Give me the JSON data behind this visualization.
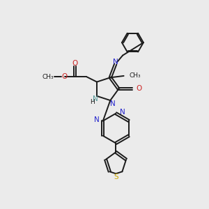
{
  "bg_color": "#ebebeb",
  "bond_color": "#1a1a1a",
  "n_color": "#2222cc",
  "o_color": "#cc2222",
  "s_color": "#ccaa00",
  "nh_color": "#559999",
  "line_width": 1.4,
  "figsize": [
    3.0,
    3.0
  ],
  "dpi": 100,
  "xlim": [
    0,
    10
  ],
  "ylim": [
    0,
    10
  ]
}
